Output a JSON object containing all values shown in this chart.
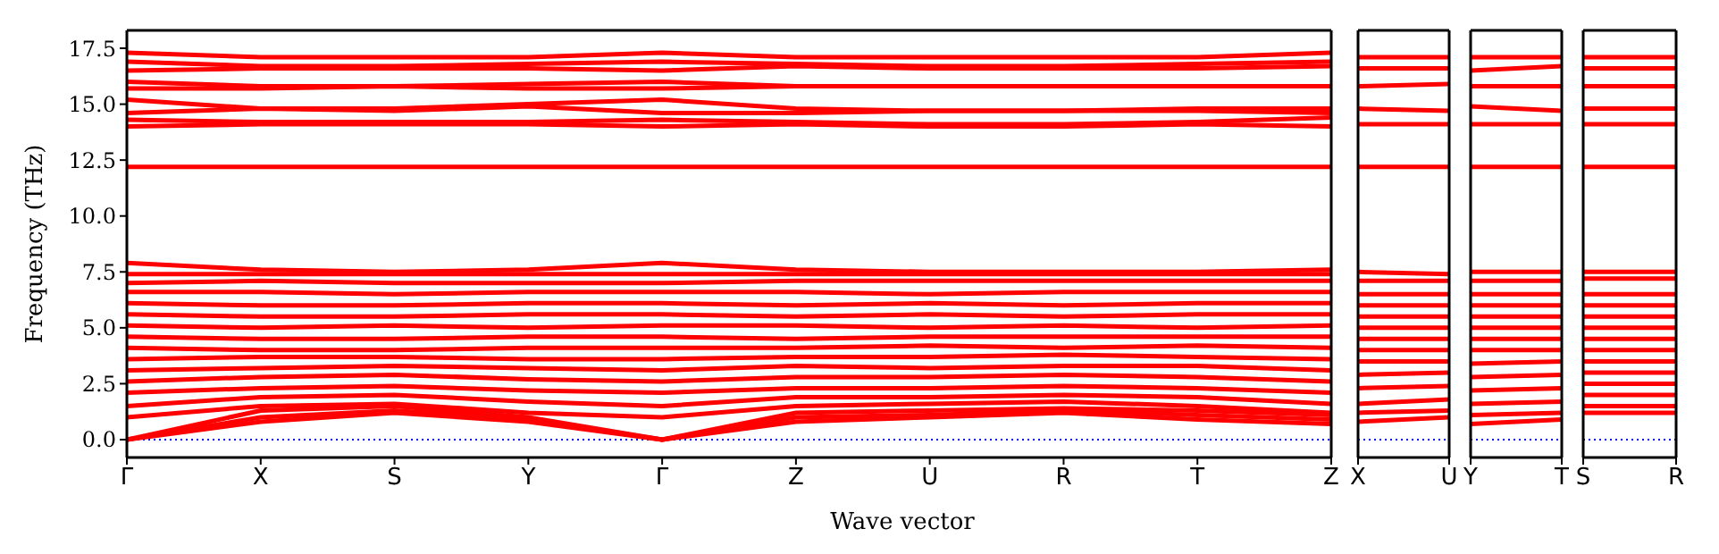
{
  "chart_data": [
    {
      "type": "line",
      "ylabel": "Frequency (THz)",
      "xlabel": "Wave vector",
      "line_style": "solid",
      "categories": [
        "Γ",
        "X",
        "S",
        "Y",
        "Γ",
        "Z",
        "U",
        "R",
        "T",
        "Z"
      ],
      "ylim": [
        -0.8,
        18.3
      ],
      "yticks": [
        {
          "value": 0,
          "label": "0.0"
        },
        {
          "value": 2.5,
          "label": "2.5"
        },
        {
          "value": 5,
          "label": "5.0"
        },
        {
          "value": 7.5,
          "label": "7.5"
        },
        {
          "value": 10,
          "label": "10.0"
        },
        {
          "value": 12.5,
          "label": "12.5"
        },
        {
          "value": 15,
          "label": "15.0"
        },
        {
          "value": 17.5,
          "label": "17.5"
        }
      ],
      "ref_lines": [
        {
          "axis": "y",
          "value": 0,
          "color": "#0000ff",
          "line_style": "dotted"
        }
      ],
      "series": [
        {
          "color": "#ff0000",
          "values": [
            0,
            0.8,
            1.2,
            0.8,
            0,
            0.8,
            1.0,
            1.2,
            0.9,
            0.7
          ]
        },
        {
          "color": "#ff0000",
          "values": [
            0,
            1.0,
            1.3,
            0.9,
            0,
            1.0,
            1.1,
            1.3,
            1.1,
            0.9
          ]
        },
        {
          "color": "#ff0000",
          "values": [
            0,
            1.3,
            1.5,
            1.0,
            0,
            1.2,
            1.3,
            1.4,
            1.3,
            1.1
          ]
        },
        {
          "color": "#ff0000",
          "values": [
            1.0,
            1.5,
            1.6,
            1.2,
            1.0,
            1.5,
            1.6,
            1.7,
            1.5,
            1.2
          ]
        },
        {
          "color": "#ff0000",
          "values": [
            1.5,
            1.9,
            2.0,
            1.7,
            1.5,
            1.9,
            1.9,
            2.0,
            1.9,
            1.6
          ]
        },
        {
          "color": "#ff0000",
          "values": [
            2.1,
            2.3,
            2.4,
            2.2,
            2.1,
            2.3,
            2.3,
            2.4,
            2.3,
            2.1
          ]
        },
        {
          "color": "#ff0000",
          "values": [
            2.6,
            2.8,
            2.9,
            2.7,
            2.6,
            2.8,
            2.8,
            2.9,
            2.8,
            2.6
          ]
        },
        {
          "color": "#ff0000",
          "values": [
            3.1,
            3.2,
            3.3,
            3.2,
            3.1,
            3.3,
            3.2,
            3.3,
            3.3,
            3.1
          ]
        },
        {
          "color": "#ff0000",
          "values": [
            3.6,
            3.7,
            3.7,
            3.6,
            3.6,
            3.7,
            3.7,
            3.8,
            3.7,
            3.6
          ]
        },
        {
          "color": "#ff0000",
          "values": [
            4.1,
            4.0,
            4.0,
            4.1,
            4.1,
            4.1,
            4.2,
            4.1,
            4.2,
            4.1
          ]
        },
        {
          "color": "#ff0000",
          "values": [
            4.6,
            4.5,
            4.5,
            4.6,
            4.6,
            4.5,
            4.6,
            4.6,
            4.6,
            4.6
          ]
        },
        {
          "color": "#ff0000",
          "values": [
            5.1,
            5.0,
            5.1,
            5.0,
            5.1,
            5.1,
            5.0,
            5.1,
            5.0,
            5.1
          ]
        },
        {
          "color": "#ff0000",
          "values": [
            5.6,
            5.5,
            5.5,
            5.6,
            5.6,
            5.5,
            5.6,
            5.5,
            5.6,
            5.6
          ]
        },
        {
          "color": "#ff0000",
          "values": [
            6.1,
            6.0,
            6.0,
            6.1,
            6.1,
            6.0,
            6.1,
            6.0,
            6.1,
            6.1
          ]
        },
        {
          "color": "#ff0000",
          "values": [
            6.6,
            6.6,
            6.5,
            6.6,
            6.6,
            6.6,
            6.5,
            6.6,
            6.6,
            6.6
          ]
        },
        {
          "color": "#ff0000",
          "values": [
            7.0,
            7.1,
            7.0,
            7.0,
            7.0,
            7.1,
            7.1,
            7.1,
            7.1,
            7.1
          ]
        },
        {
          "color": "#ff0000",
          "values": [
            7.4,
            7.4,
            7.4,
            7.4,
            7.4,
            7.4,
            7.4,
            7.4,
            7.4,
            7.4
          ]
        },
        {
          "color": "#ff0000",
          "values": [
            7.9,
            7.6,
            7.5,
            7.6,
            7.9,
            7.6,
            7.5,
            7.5,
            7.5,
            7.6
          ]
        },
        {
          "color": "#ff0000",
          "values": [
            12.2,
            12.2,
            12.2,
            12.2,
            12.2,
            12.2,
            12.2,
            12.2,
            12.2,
            12.2
          ]
        },
        {
          "color": "#ff0000",
          "values": [
            14.0,
            14.1,
            14.1,
            14.1,
            14.0,
            14.1,
            14.0,
            14.0,
            14.1,
            14.0
          ]
        },
        {
          "color": "#ff0000",
          "values": [
            14.3,
            14.2,
            14.2,
            14.2,
            14.3,
            14.2,
            14.1,
            14.1,
            14.2,
            14.4
          ]
        },
        {
          "color": "#ff0000",
          "values": [
            14.6,
            14.8,
            14.7,
            14.9,
            14.6,
            14.6,
            14.7,
            14.7,
            14.7,
            14.6
          ]
        },
        {
          "color": "#ff0000",
          "values": [
            15.2,
            14.8,
            14.8,
            15.0,
            15.2,
            14.8,
            14.7,
            14.7,
            14.8,
            14.8
          ]
        },
        {
          "color": "#ff0000",
          "values": [
            15.7,
            15.7,
            15.8,
            15.7,
            15.7,
            15.8,
            15.8,
            15.8,
            15.8,
            15.8
          ]
        },
        {
          "color": "#ff0000",
          "values": [
            16.0,
            15.8,
            15.8,
            15.9,
            16.0,
            15.8,
            15.8,
            15.8,
            15.8,
            15.8
          ]
        },
        {
          "color": "#ff0000",
          "values": [
            16.5,
            16.6,
            16.6,
            16.6,
            16.5,
            16.7,
            16.6,
            16.6,
            16.6,
            16.7
          ]
        },
        {
          "color": "#ff0000",
          "values": [
            16.9,
            16.7,
            16.7,
            16.8,
            16.9,
            16.8,
            16.7,
            16.7,
            16.8,
            16.9
          ]
        },
        {
          "color": "#ff0000",
          "values": [
            17.3,
            17.1,
            17.1,
            17.1,
            17.3,
            17.1,
            17.1,
            17.1,
            17.1,
            17.3
          ]
        }
      ]
    },
    {
      "type": "line",
      "tick_labels": "x",
      "line_style": "solid",
      "categories": [
        "X",
        "U"
      ],
      "ylim": [
        -0.8,
        18.3
      ],
      "ref_lines": [
        {
          "axis": "y",
          "value": 0,
          "color": "#0000ff",
          "line_style": "dotted"
        }
      ],
      "series": [
        {
          "color": "#ff0000",
          "values": [
            0.8,
            1.0
          ]
        },
        {
          "color": "#ff0000",
          "values": [
            1.2,
            1.3
          ]
        },
        {
          "color": "#ff0000",
          "values": [
            1.6,
            1.8
          ]
        },
        {
          "color": "#ff0000",
          "values": [
            2.3,
            2.4
          ]
        },
        {
          "color": "#ff0000",
          "values": [
            2.9,
            3.0
          ]
        },
        {
          "color": "#ff0000",
          "values": [
            3.5,
            3.5
          ]
        },
        {
          "color": "#ff0000",
          "values": [
            4.0,
            4.0
          ]
        },
        {
          "color": "#ff0000",
          "values": [
            4.5,
            4.5
          ]
        },
        {
          "color": "#ff0000",
          "values": [
            5.0,
            5.0
          ]
        },
        {
          "color": "#ff0000",
          "values": [
            5.5,
            5.5
          ]
        },
        {
          "color": "#ff0000",
          "values": [
            6.0,
            6.0
          ]
        },
        {
          "color": "#ff0000",
          "values": [
            6.5,
            6.5
          ]
        },
        {
          "color": "#ff0000",
          "values": [
            7.1,
            7.1
          ]
        },
        {
          "color": "#ff0000",
          "values": [
            7.5,
            7.4
          ]
        },
        {
          "color": "#ff0000",
          "values": [
            12.2,
            12.2
          ]
        },
        {
          "color": "#ff0000",
          "values": [
            14.1,
            14.1
          ]
        },
        {
          "color": "#ff0000",
          "values": [
            14.8,
            14.7
          ]
        },
        {
          "color": "#ff0000",
          "values": [
            15.8,
            15.9
          ]
        },
        {
          "color": "#ff0000",
          "values": [
            16.6,
            16.6
          ]
        },
        {
          "color": "#ff0000",
          "values": [
            17.1,
            17.1
          ]
        }
      ]
    },
    {
      "type": "line",
      "tick_labels": "x",
      "line_style": "solid",
      "categories": [
        "Y",
        "T"
      ],
      "ylim": [
        -0.8,
        18.3
      ],
      "ref_lines": [
        {
          "axis": "y",
          "value": 0,
          "color": "#0000ff",
          "line_style": "dotted"
        }
      ],
      "series": [
        {
          "color": "#ff0000",
          "values": [
            0.7,
            0.9
          ]
        },
        {
          "color": "#ff0000",
          "values": [
            1.1,
            1.2
          ]
        },
        {
          "color": "#ff0000",
          "values": [
            1.6,
            1.7
          ]
        },
        {
          "color": "#ff0000",
          "values": [
            2.2,
            2.3
          ]
        },
        {
          "color": "#ff0000",
          "values": [
            2.8,
            2.9
          ]
        },
        {
          "color": "#ff0000",
          "values": [
            3.4,
            3.5
          ]
        },
        {
          "color": "#ff0000",
          "values": [
            4.0,
            4.0
          ]
        },
        {
          "color": "#ff0000",
          "values": [
            4.5,
            4.5
          ]
        },
        {
          "color": "#ff0000",
          "values": [
            5.0,
            5.0
          ]
        },
        {
          "color": "#ff0000",
          "values": [
            5.5,
            5.5
          ]
        },
        {
          "color": "#ff0000",
          "values": [
            6.0,
            6.0
          ]
        },
        {
          "color": "#ff0000",
          "values": [
            6.5,
            6.5
          ]
        },
        {
          "color": "#ff0000",
          "values": [
            7.1,
            7.1
          ]
        },
        {
          "color": "#ff0000",
          "values": [
            7.5,
            7.5
          ]
        },
        {
          "color": "#ff0000",
          "values": [
            12.2,
            12.2
          ]
        },
        {
          "color": "#ff0000",
          "values": [
            14.1,
            14.1
          ]
        },
        {
          "color": "#ff0000",
          "values": [
            14.9,
            14.7
          ]
        },
        {
          "color": "#ff0000",
          "values": [
            15.8,
            15.8
          ]
        },
        {
          "color": "#ff0000",
          "values": [
            16.5,
            16.7
          ]
        },
        {
          "color": "#ff0000",
          "values": [
            17.1,
            17.1
          ]
        }
      ]
    },
    {
      "type": "line",
      "tick_labels": "x",
      "line_style": "solid",
      "categories": [
        "S",
        "R"
      ],
      "ylim": [
        -0.8,
        18.3
      ],
      "ref_lines": [
        {
          "axis": "y",
          "value": 0,
          "color": "#0000ff",
          "line_style": "dotted"
        }
      ],
      "series": [
        {
          "color": "#ff0000",
          "values": [
            1.2,
            1.2
          ]
        },
        {
          "color": "#ff0000",
          "values": [
            1.5,
            1.5
          ]
        },
        {
          "color": "#ff0000",
          "values": [
            2.0,
            2.0
          ]
        },
        {
          "color": "#ff0000",
          "values": [
            2.5,
            2.5
          ]
        },
        {
          "color": "#ff0000",
          "values": [
            3.0,
            3.0
          ]
        },
        {
          "color": "#ff0000",
          "values": [
            3.5,
            3.5
          ]
        },
        {
          "color": "#ff0000",
          "values": [
            4.0,
            4.0
          ]
        },
        {
          "color": "#ff0000",
          "values": [
            4.5,
            4.5
          ]
        },
        {
          "color": "#ff0000",
          "values": [
            5.0,
            5.0
          ]
        },
        {
          "color": "#ff0000",
          "values": [
            5.5,
            5.5
          ]
        },
        {
          "color": "#ff0000",
          "values": [
            6.0,
            6.0
          ]
        },
        {
          "color": "#ff0000",
          "values": [
            6.5,
            6.5
          ]
        },
        {
          "color": "#ff0000",
          "values": [
            7.2,
            7.2
          ]
        },
        {
          "color": "#ff0000",
          "values": [
            7.5,
            7.5
          ]
        },
        {
          "color": "#ff0000",
          "values": [
            12.2,
            12.2
          ]
        },
        {
          "color": "#ff0000",
          "values": [
            14.1,
            14.1
          ]
        },
        {
          "color": "#ff0000",
          "values": [
            14.8,
            14.8
          ]
        },
        {
          "color": "#ff0000",
          "values": [
            15.8,
            15.8
          ]
        },
        {
          "color": "#ff0000",
          "values": [
            16.6,
            16.6
          ]
        },
        {
          "color": "#ff0000",
          "values": [
            17.1,
            17.1
          ]
        }
      ]
    }
  ]
}
